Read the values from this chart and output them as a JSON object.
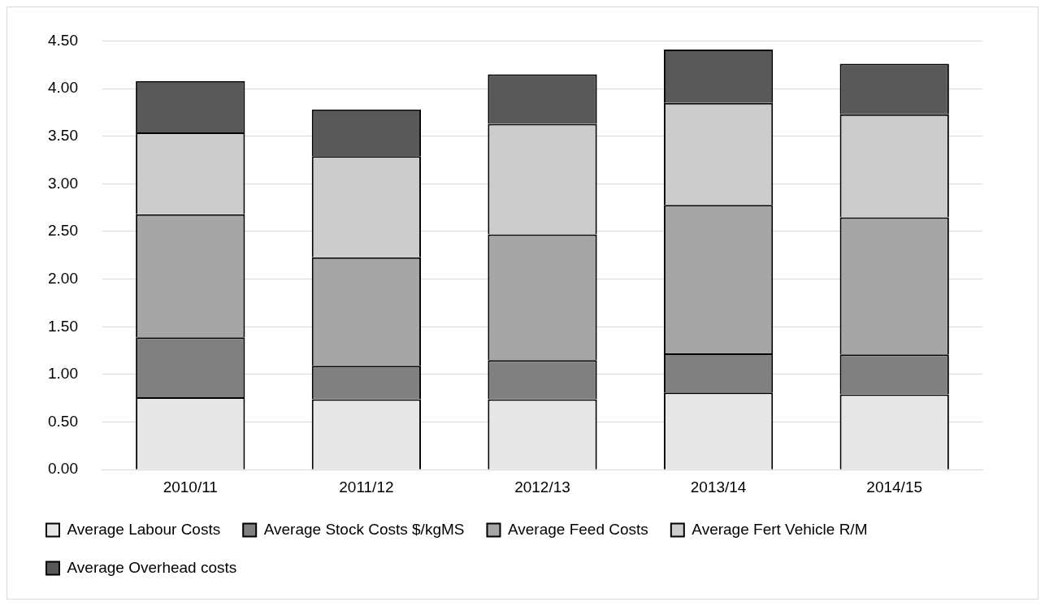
{
  "chart_data": {
    "type": "bar",
    "stacked": true,
    "categories": [
      "2010/11",
      "2011/12",
      "2012/13",
      "2013/14",
      "2014/15"
    ],
    "series": [
      {
        "name": "Average Labour Costs",
        "color": "#e6e6e6",
        "values": [
          0.76,
          0.74,
          0.74,
          0.81,
          0.79
        ]
      },
      {
        "name": "Average Stock Costs $/kgMS",
        "color": "#808080",
        "values": [
          0.63,
          0.35,
          0.41,
          0.41,
          0.42
        ]
      },
      {
        "name": "Average Feed Costs",
        "color": "#a6a6a6",
        "values": [
          1.29,
          1.14,
          1.32,
          1.56,
          1.44
        ]
      },
      {
        "name": "Average Fert Vehicle R/M",
        "color": "#cccccc",
        "values": [
          0.86,
          1.06,
          1.16,
          1.07,
          1.08
        ]
      },
      {
        "name": "Average Overhead costs",
        "color": "#595959",
        "values": [
          0.54,
          0.49,
          0.52,
          0.56,
          0.53
        ]
      }
    ],
    "ylim": [
      0,
      4.5
    ],
    "yticks": [
      {
        "value": 0,
        "label": "0.00"
      },
      {
        "value": 0.5,
        "label": "0.50"
      },
      {
        "value": 1,
        "label": "1.00"
      },
      {
        "value": 1.5,
        "label": "1.50"
      },
      {
        "value": 2,
        "label": "2.00"
      },
      {
        "value": 2.5,
        "label": "2.50"
      },
      {
        "value": 3,
        "label": "3.00"
      },
      {
        "value": 3.5,
        "label": "3.50"
      },
      {
        "value": 4,
        "label": "4.00"
      },
      {
        "value": 4.5,
        "label": "4.50"
      }
    ],
    "grid": "y",
    "legend": "bottom"
  }
}
